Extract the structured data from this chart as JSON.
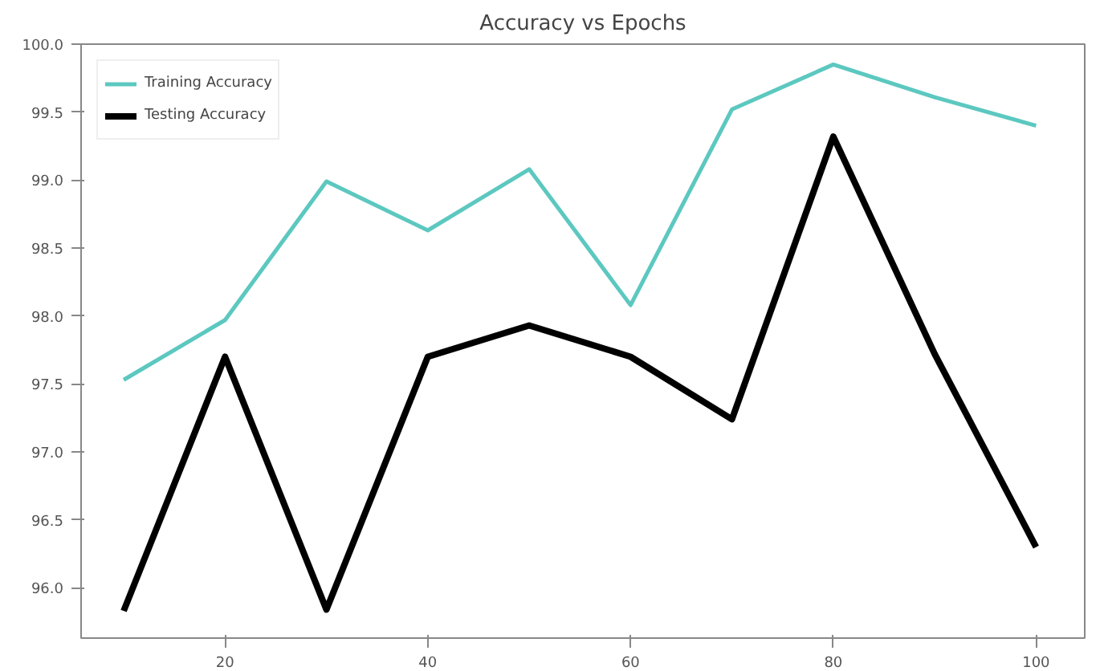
{
  "chart_data": {
    "type": "line",
    "title": "Accuracy vs Epochs",
    "x": [
      10,
      20,
      30,
      40,
      50,
      60,
      70,
      80,
      90,
      100
    ],
    "series": [
      {
        "name": "Training Accuracy",
        "color": "#5cc8c0",
        "values": [
          97.53,
          97.97,
          98.99,
          98.63,
          99.08,
          98.08,
          99.52,
          99.85,
          99.61,
          99.4
        ]
      },
      {
        "name": "Testing Accuracy",
        "color": "#000000",
        "values": [
          95.83,
          97.7,
          95.84,
          97.7,
          97.93,
          97.7,
          97.24,
          99.32,
          97.72,
          96.3
        ]
      }
    ],
    "xlim": [
      5.8,
      104.8
    ],
    "ylim": [
      95.63,
      100.0
    ],
    "xticks": [
      20,
      40,
      60,
      80,
      100
    ],
    "yticks": [
      {
        "value": 96,
        "label": "96.0"
      },
      {
        "value": 96.5,
        "label": "96.5"
      },
      {
        "value": 97,
        "label": "97.0"
      },
      {
        "value": 97.5,
        "label": "97.5"
      },
      {
        "value": 98,
        "label": "98.0"
      },
      {
        "value": 98.5,
        "label": "98.5"
      },
      {
        "value": 99,
        "label": "99.0"
      },
      {
        "value": 99.5,
        "label": "99.5"
      },
      {
        "value": 100,
        "label": "100.0"
      }
    ],
    "legend": "top left",
    "grid": false
  }
}
